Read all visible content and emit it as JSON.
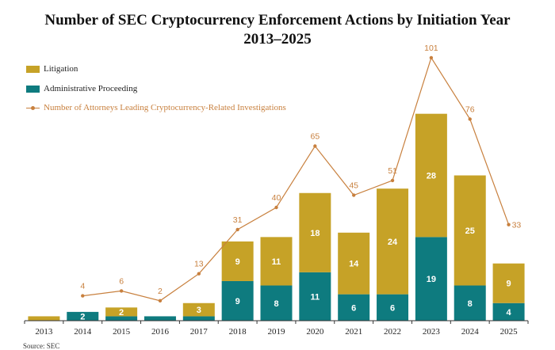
{
  "colors": {
    "litigation": "#c6a227",
    "administrative": "#0e7b7f",
    "line": "#c8803e",
    "axis": "#333333",
    "label_light": "#ffffff"
  },
  "chart_data": {
    "type": "bar",
    "stacked": true,
    "title": "Number of SEC Cryptocurrency Enforcement Actions by Initiation Year",
    "subtitle": "2013–2025",
    "categories": [
      "2013",
      "2014",
      "2015",
      "2016",
      "2017",
      "2018",
      "2019",
      "2020",
      "2021",
      "2022",
      "2023",
      "2024",
      "2025"
    ],
    "series": [
      {
        "name": "Administrative Proceeding",
        "values": [
          0,
          2,
          1,
          1,
          1,
          9,
          8,
          11,
          6,
          6,
          19,
          8,
          4
        ],
        "labels": [
          "",
          "2",
          "",
          "",
          "",
          "9",
          "8",
          "11",
          "6",
          "6",
          "19",
          "8",
          "4"
        ]
      },
      {
        "name": "Litigation",
        "values": [
          1,
          0,
          2,
          0,
          3,
          9,
          11,
          18,
          14,
          24,
          28,
          25,
          9
        ],
        "labels": [
          "",
          "",
          "2",
          "",
          "3",
          "9",
          "11",
          "18",
          "14",
          "24",
          "28",
          "25",
          "9"
        ]
      }
    ],
    "line_series": {
      "name": "Number of Attorneys Leading Cryptocurrency-Related Investigations",
      "categories": [
        "2014",
        "2015",
        "2016",
        "2017",
        "2018",
        "2019",
        "2020",
        "2021",
        "2022",
        "2023",
        "2024",
        "2025"
      ],
      "values": [
        4,
        6,
        2,
        13,
        31,
        40,
        65,
        45,
        51,
        101,
        76,
        33
      ]
    },
    "bar_ylim": [
      0,
      52
    ],
    "line_ylim": [
      0,
      111
    ],
    "legend": [
      "Litigation",
      "Administrative Proceeding",
      "Number of Attorneys Leading Cryptocurrency-Related Investigations"
    ],
    "legend_position": "top-left",
    "grid": false
  },
  "footer": {
    "source": "Source: SEC"
  }
}
